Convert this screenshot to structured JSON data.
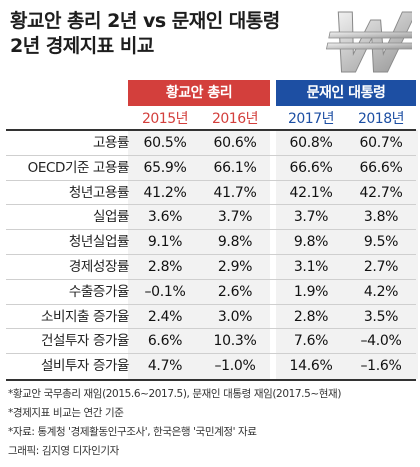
{
  "title": {
    "line1": "황교안 총리 2년 vs 문재인 대통령",
    "line2": "2년 경제지표 비교"
  },
  "logo": {
    "icon": "won-sign-icon",
    "color": "#cfcfcf"
  },
  "colors": {
    "red": "#d33f3c",
    "blue": "#1d4fa3"
  },
  "chart_data": {
    "type": "table",
    "groups": [
      {
        "name": "황교안 총리",
        "columns": [
          "2015년",
          "2016년"
        ]
      },
      {
        "name": "문재인 대통령",
        "columns": [
          "2017년",
          "2018년"
        ]
      }
    ],
    "columns": [
      "2015년",
      "2016년",
      "2017년",
      "2018년"
    ],
    "rows": [
      {
        "label": "고용률",
        "values": [
          "60.5%",
          "60.6%",
          "60.8%",
          "60.7%"
        ]
      },
      {
        "label": "OECD기준 고용률",
        "values": [
          "65.9%",
          "66.1%",
          "66.6%",
          "66.6%"
        ]
      },
      {
        "label": "청년고용률",
        "values": [
          "41.2%",
          "41.7%",
          "42.1%",
          "42.7%"
        ]
      },
      {
        "label": "실업률",
        "values": [
          "3.6%",
          "3.7%",
          "3.7%",
          "3.8%"
        ]
      },
      {
        "label": "청년실업률",
        "values": [
          "9.1%",
          "9.8%",
          "9.8%",
          "9.5%"
        ]
      },
      {
        "label": "경제성장률",
        "values": [
          "2.8%",
          "2.9%",
          "3.1%",
          "2.7%"
        ]
      },
      {
        "label": "수출증가율",
        "values": [
          "–0.1%",
          "2.6%",
          "1.9%",
          "4.2%"
        ]
      },
      {
        "label": "소비지출 증가율",
        "values": [
          "2.4%",
          "3.0%",
          "2.8%",
          "3.5%"
        ]
      },
      {
        "label": "건설투자 증가율",
        "values": [
          "6.6%",
          "10.3%",
          "7.6%",
          "–4.0%"
        ]
      },
      {
        "label": "설비투자 증가율",
        "values": [
          "4.7%",
          "–1.0%",
          "14.6%",
          "–1.6%"
        ]
      }
    ]
  },
  "notes": [
    "*황교안 국무총리 재임(2015.6~2017.5), 문재인 대통령 재임(2017.5~현재)",
    "*경제지표 비교는 연간 기준",
    "*자료: 통계청 '경제활동인구조사', 한국은행 '국민계정' 자료",
    "그래픽: 김지영 디자인기자"
  ]
}
